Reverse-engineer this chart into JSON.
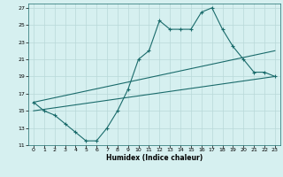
{
  "xlabel": "Humidex (Indice chaleur)",
  "background_color": "#d6f0f0",
  "grid_color": "#b8d8d8",
  "line_color": "#1a6b6b",
  "xlim": [
    -0.5,
    23.5
  ],
  "ylim": [
    11,
    27.5
  ],
  "yticks": [
    11,
    13,
    15,
    17,
    19,
    21,
    23,
    25,
    27
  ],
  "xticks": [
    0,
    1,
    2,
    3,
    4,
    5,
    6,
    7,
    8,
    9,
    10,
    11,
    12,
    13,
    14,
    15,
    16,
    17,
    18,
    19,
    20,
    21,
    22,
    23
  ],
  "series1_x": [
    0,
    1,
    2,
    3,
    4,
    5,
    6,
    7,
    8,
    9,
    10,
    11,
    12,
    13,
    14,
    15,
    16,
    17,
    18,
    19,
    20,
    21,
    22,
    23
  ],
  "series1_y": [
    16,
    15,
    14.5,
    13.5,
    12.5,
    11.5,
    11.5,
    13.0,
    15.0,
    17.5,
    21.0,
    22.0,
    25.5,
    24.5,
    24.5,
    24.5,
    26.5,
    27.0,
    24.5,
    22.5,
    21.0,
    19.5,
    19.5,
    19.0
  ],
  "trend1_x": [
    0,
    23
  ],
  "trend1_y": [
    16.0,
    22.0
  ],
  "trend2_x": [
    0,
    23
  ],
  "trend2_y": [
    15.0,
    19.0
  ]
}
